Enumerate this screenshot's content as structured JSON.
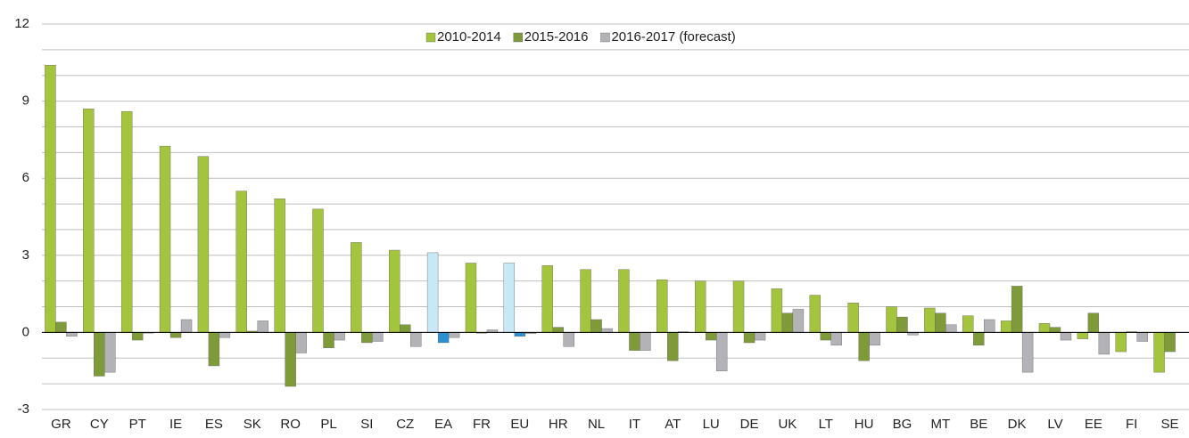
{
  "chart_data": {
    "type": "bar",
    "categories": [
      "GR",
      "CY",
      "PT",
      "IE",
      "ES",
      "SK",
      "RO",
      "PL",
      "SI",
      "CZ",
      "EA",
      "FR",
      "EU",
      "HR",
      "NL",
      "IT",
      "AT",
      "LU",
      "DE",
      "UK",
      "LT",
      "HU",
      "BG",
      "MT",
      "BE",
      "DK",
      "LV",
      "EE",
      "FI",
      "SE"
    ],
    "series": [
      {
        "name": "2010-2014",
        "color": "#a3c43c",
        "colors": [
          "#a3c43c",
          "#a3c43c",
          "#a3c43c",
          "#a3c43c",
          "#a3c43c",
          "#a3c43c",
          "#a3c43c",
          "#a3c43c",
          "#a3c43c",
          "#a3c43c",
          "#c9e8f6",
          "#a3c43c",
          "#c9e8f6",
          "#a3c43c",
          "#a3c43c",
          "#a3c43c",
          "#a3c43c",
          "#a3c43c",
          "#a3c43c",
          "#a3c43c",
          "#a3c43c",
          "#a3c43c",
          "#a3c43c",
          "#a3c43c",
          "#a3c43c",
          "#a3c43c",
          "#a3c43c",
          "#a3c43c",
          "#a3c43c",
          "#a3c43c"
        ],
        "values": [
          10.4,
          8.7,
          8.6,
          7.25,
          6.85,
          5.5,
          5.2,
          4.8,
          3.5,
          3.2,
          3.1,
          2.7,
          2.7,
          2.6,
          2.45,
          2.45,
          2.05,
          2.0,
          2.0,
          1.7,
          1.45,
          1.15,
          1.0,
          0.95,
          0.65,
          0.45,
          0.35,
          -0.25,
          -0.75,
          -1.55
        ]
      },
      {
        "name": "2015-2016",
        "color": "#7f9a38",
        "colors": [
          "#7f9a38",
          "#7f9a38",
          "#7f9a38",
          "#7f9a38",
          "#7f9a38",
          "#7f9a38",
          "#7f9a38",
          "#7f9a38",
          "#7f9a38",
          "#7f9a38",
          "#2b8fd0",
          "#7f9a38",
          "#2b8fd0",
          "#7f9a38",
          "#7f9a38",
          "#7f9a38",
          "#7f9a38",
          "#7f9a38",
          "#7f9a38",
          "#7f9a38",
          "#7f9a38",
          "#7f9a38",
          "#7f9a38",
          "#7f9a38",
          "#7f9a38",
          "#7f9a38",
          "#7f9a38",
          "#7f9a38",
          "#7f9a38",
          "#7f9a38"
        ],
        "values": [
          0.4,
          -1.7,
          -0.3,
          -0.2,
          -1.3,
          0.05,
          -2.1,
          -0.6,
          -0.4,
          0.3,
          -0.4,
          -0.03,
          -0.15,
          0.2,
          0.5,
          -0.7,
          -1.1,
          -0.3,
          -0.4,
          0.75,
          -0.3,
          -1.1,
          0.6,
          0.75,
          -0.5,
          1.8,
          0.2,
          0.75,
          0.03,
          -0.75
        ]
      },
      {
        "name": "2016-2017 (forecast)",
        "color": "#b3b3b7",
        "colors": [
          "#b3b3b7",
          "#b3b3b7",
          "#b3b3b7",
          "#b3b3b7",
          "#b3b3b7",
          "#b3b3b7",
          "#b3b3b7",
          "#b3b3b7",
          "#b3b3b7",
          "#b3b3b7",
          "#b3b3b7",
          "#b3b3b7",
          "#b3b3b7",
          "#b3b3b7",
          "#b3b3b7",
          "#b3b3b7",
          "#b3b3b7",
          "#b3b3b7",
          "#b3b3b7",
          "#b3b3b7",
          "#b3b3b7",
          "#b3b3b7",
          "#b3b3b7",
          "#b3b3b7",
          "#b3b3b7",
          "#b3b3b7",
          "#b3b3b7",
          "#b3b3b7",
          "#b3b3b7",
          "#b3b3b7"
        ],
        "values": [
          -0.15,
          -1.55,
          -0.03,
          0.5,
          -0.2,
          0.45,
          -0.8,
          -0.3,
          -0.35,
          -0.55,
          -0.2,
          0.1,
          -0.05,
          -0.55,
          0.15,
          -0.7,
          0.03,
          -1.5,
          -0.3,
          0.9,
          -0.5,
          -0.5,
          -0.1,
          0.3,
          0.5,
          -1.55,
          -0.3,
          -0.85,
          -0.35,
          0
        ]
      }
    ],
    "ylim": [
      -3,
      12
    ],
    "yticks": [
      -3,
      0,
      3,
      6,
      9,
      12
    ],
    "ygrid": [
      -3,
      -2,
      -1,
      0,
      1,
      2,
      3,
      4,
      5,
      6,
      7,
      8,
      9,
      10,
      11,
      12
    ],
    "grid": true,
    "legend": "top"
  }
}
